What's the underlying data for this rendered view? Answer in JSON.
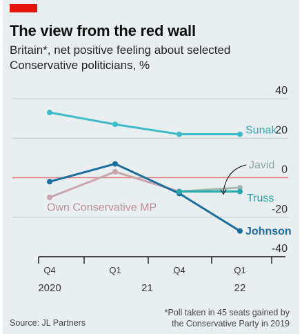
{
  "header": {
    "title": "The view from the red wall",
    "subtitle": "Britain*, net positive feeling about selected Conservative politicians, %"
  },
  "footer": {
    "source": "Source: JL Partners",
    "note_line1": "*Poll taken in 45 seats gained by",
    "note_line2": "the Conservative Party in 2019"
  },
  "colors": {
    "background": "#e9eef0",
    "accent": "#e3120b",
    "zero_line": "#e07b7b",
    "grid": "#c4ccd0"
  },
  "chart_data": {
    "type": "line",
    "ylim": [
      -40,
      40
    ],
    "yticks": [
      {
        "value": 40,
        "label": "40"
      },
      {
        "value": 20,
        "label": "20"
      },
      {
        "value": 0,
        "label": "0"
      },
      {
        "value": -20,
        "label": "-20"
      },
      {
        "value": -40,
        "label": "-40"
      }
    ],
    "x_positions": [
      0,
      1,
      2,
      3
    ],
    "x_ticks": [
      {
        "pos": 0,
        "label": "Q4"
      },
      {
        "pos": 1,
        "label": "Q1"
      },
      {
        "pos": 2,
        "label": "Q4"
      },
      {
        "pos": 3,
        "label": "Q1"
      }
    ],
    "year_labels": [
      {
        "pos": 0,
        "label": "2020"
      },
      {
        "pos": 1.5,
        "label": "21"
      },
      {
        "pos": 3,
        "label": "22"
      }
    ],
    "series": [
      {
        "name": "Sunak",
        "color": "#3dbbc9",
        "label_color": "#3aa5b3",
        "values": [
          33,
          27,
          22,
          22
        ]
      },
      {
        "name": "Own Conservative MP",
        "color": "#c9a6ad",
        "label_color": "#b98f98",
        "values": [
          -10,
          3,
          -7,
          -7
        ]
      },
      {
        "name": "Johnson",
        "color": "#1a6d9e",
        "label_color": "#1a6d9e",
        "values": [
          -2,
          7,
          -8,
          -27
        ]
      },
      {
        "name": "Javid",
        "color": "#a4b6b2",
        "label_color": "#8ea7a3",
        "values": [
          null,
          null,
          -7,
          -5
        ]
      },
      {
        "name": "Truss",
        "color": "#25a9a9",
        "label_color": "#1f9aa1",
        "values": [
          null,
          null,
          -7,
          -7
        ]
      }
    ]
  }
}
